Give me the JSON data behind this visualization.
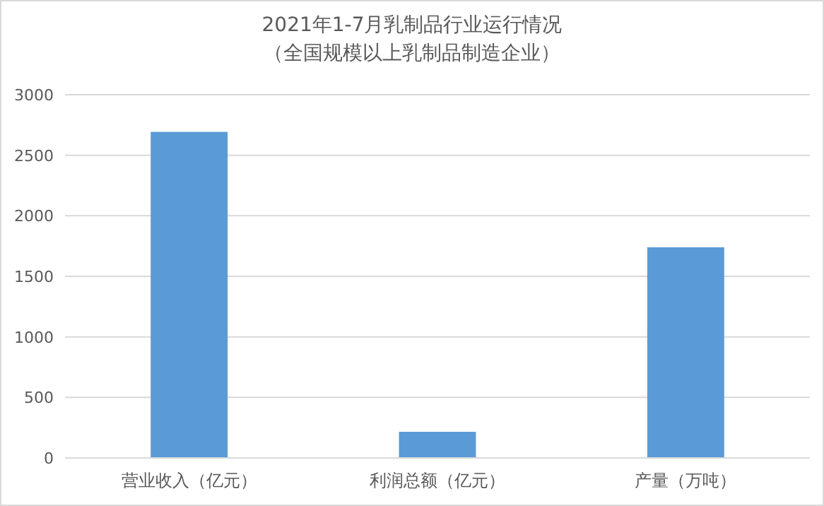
{
  "chart_data": {
    "type": "bar",
    "title": "2021年1-7月乳制品行业运行情况",
    "subtitle": "（全国规模以上乳制品制造企业）",
    "categories": [
      "营业收入（亿元）",
      "利润总额（亿元）",
      "产量（万吨）"
    ],
    "values": [
      2693,
      216,
      1740
    ],
    "color": "#5b9bd5",
    "ylim": [
      0,
      3000
    ],
    "yticks": [
      0,
      500,
      1000,
      1500,
      2000,
      2500,
      3000
    ],
    "grid": "y"
  }
}
